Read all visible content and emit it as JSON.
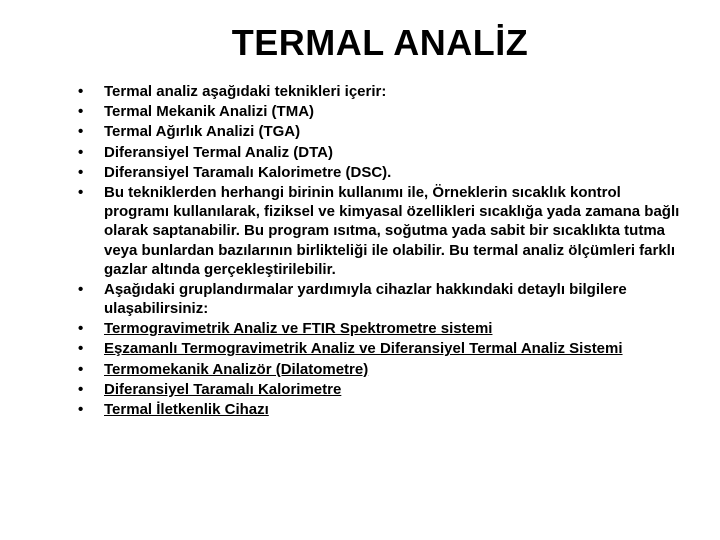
{
  "title": "TERMAL ANALİZ",
  "items": [
    {
      "text": "Termal analiz aşağıdaki teknikleri içerir:",
      "underline": false
    },
    {
      "text": "Termal Mekanik Analizi (TMA)",
      "underline": false
    },
    {
      "text": "Termal Ağırlık Analizi (TGA)",
      "underline": false
    },
    {
      "text": "Diferansiyel Termal Analiz (DTA)",
      "underline": false
    },
    {
      "text": "Diferansiyel Taramalı Kalorimetre (DSC).",
      "underline": false
    },
    {
      "text": "Bu tekniklerden herhangi birinin kullanımı ile, Örneklerin sıcaklık kontrol programı kullanılarak, fiziksel ve kimyasal özellikleri sıcaklığa yada zamana bağlı olarak saptanabilir. Bu program ısıtma, soğutma yada sabit bir sıcaklıkta tutma veya bunlardan bazılarının birlikteliği ile olabilir. Bu termal analiz ölçümleri farklı gazlar altında gerçekleştirilebilir.",
      "underline": false
    },
    {
      "text": "Aşağıdaki gruplandırmalar yardımıyla cihazlar hakkındaki detaylı bilgilere ulaşabilirsiniz:",
      "underline": false
    },
    {
      "text": "Termogravimetrik Analiz ve FTIR Spektrometre sistemi",
      "underline": true
    },
    {
      "text": "Eşzamanlı Termogravimetrik Analiz ve Diferansiyel Termal Analiz Sistemi",
      "underline": true
    },
    {
      "text": "Termomekanik Analizör (Dilatometre)",
      "underline": true
    },
    {
      "text": "Diferansiyel Taramalı Kalorimetre",
      "underline": true
    },
    {
      "text": "Termal İletkenlik Cihazı",
      "underline": true
    }
  ],
  "style": {
    "background_color": "#ffffff",
    "text_color": "#000000",
    "title_fontsize": 36,
    "body_fontsize": 15,
    "font_family": "Arial"
  }
}
